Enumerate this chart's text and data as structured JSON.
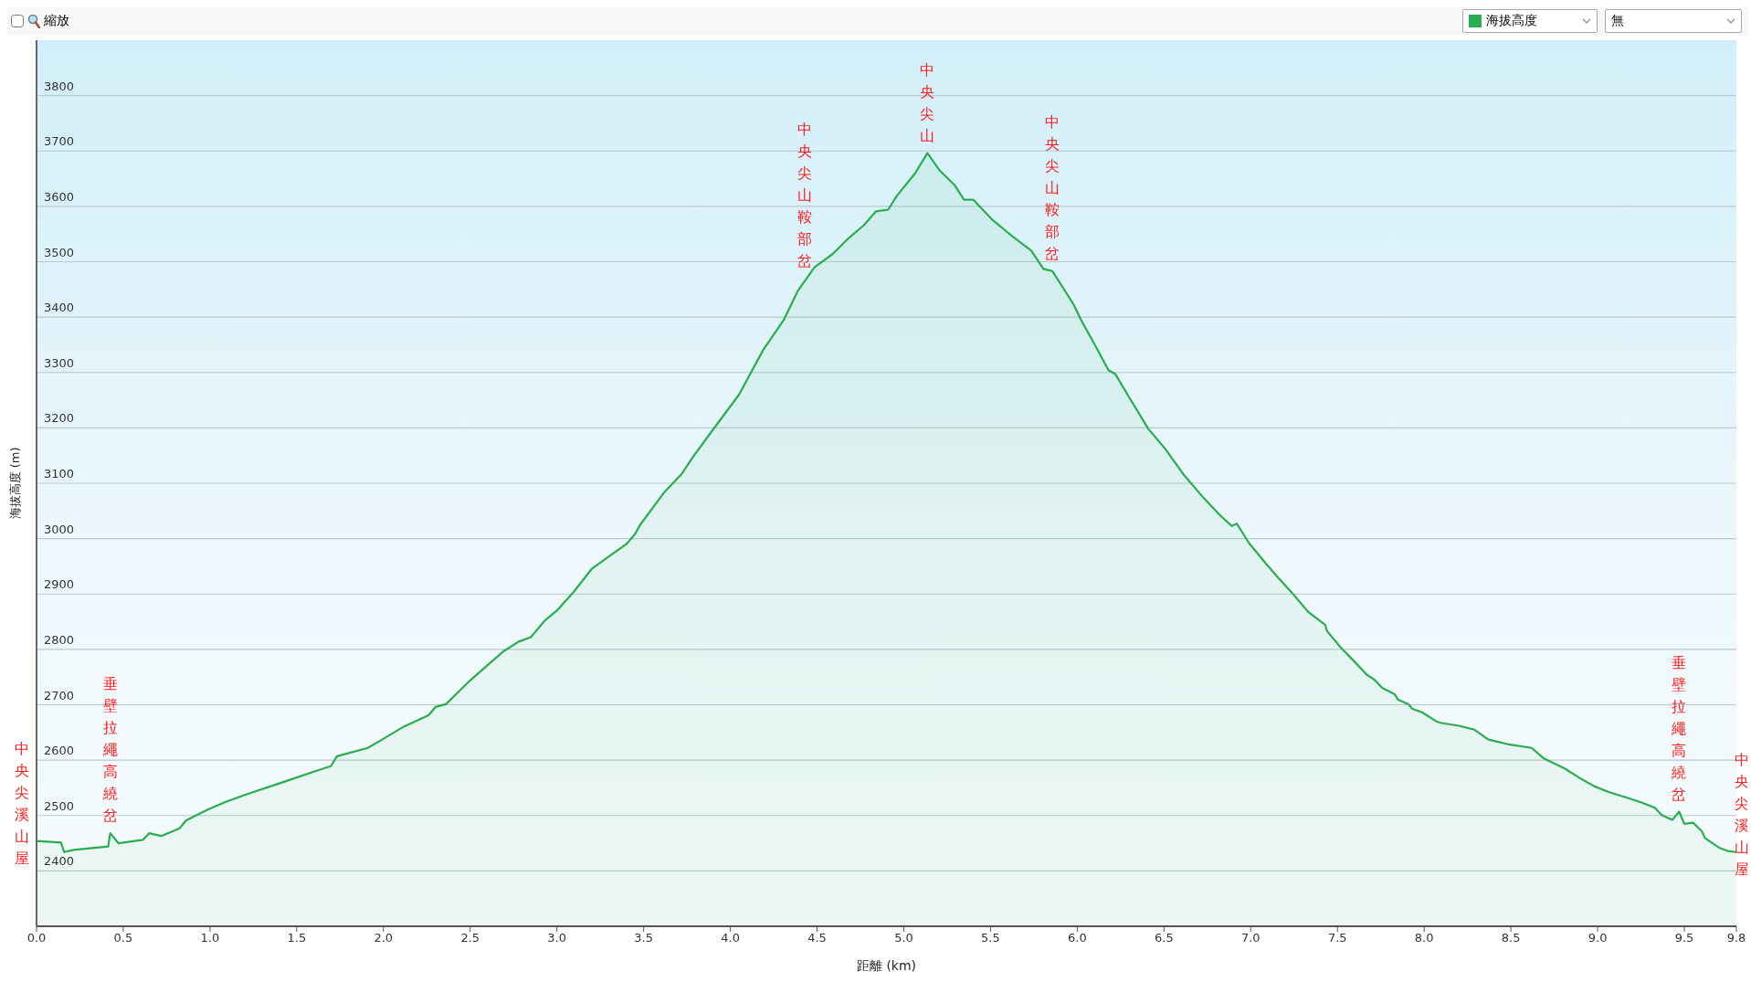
{
  "chart_data": {
    "type": "area",
    "xlabel": "距離 (km)",
    "ylabel": "海拔高度 (m)",
    "xlim": [
      0,
      9.8
    ],
    "ylim": [
      2300,
      3900
    ],
    "xticks": [
      {
        "value": 0,
        "label": "0.0"
      },
      {
        "value": 0.5,
        "label": "0.5"
      },
      {
        "value": 1,
        "label": "1.0"
      },
      {
        "value": 1.5,
        "label": "1.5"
      },
      {
        "value": 2,
        "label": "2.0"
      },
      {
        "value": 2.5,
        "label": "2.5"
      },
      {
        "value": 3,
        "label": "3.0"
      },
      {
        "value": 3.5,
        "label": "3.5"
      },
      {
        "value": 4,
        "label": "4.0"
      },
      {
        "value": 4.5,
        "label": "4.5"
      },
      {
        "value": 5,
        "label": "5.0"
      },
      {
        "value": 5.5,
        "label": "5.5"
      },
      {
        "value": 6,
        "label": "6.0"
      },
      {
        "value": 6.5,
        "label": "6.5"
      },
      {
        "value": 7,
        "label": "7.0"
      },
      {
        "value": 7.5,
        "label": "7.5"
      },
      {
        "value": 8,
        "label": "8.0"
      },
      {
        "value": 8.5,
        "label": "8.5"
      },
      {
        "value": 9,
        "label": "9.0"
      },
      {
        "value": 9.5,
        "label": "9.5"
      },
      {
        "value": 9.8,
        "label": "9.8"
      }
    ],
    "yticks": [
      2400,
      2500,
      2600,
      2700,
      2800,
      2900,
      3000,
      3100,
      3200,
      3300,
      3400,
      3500,
      3600,
      3700,
      3800
    ],
    "grid": "y",
    "legend": "top right",
    "x": [
      0,
      0.142,
      0.159,
      0.213,
      0.413,
      0.425,
      0.472,
      0.613,
      0.649,
      0.719,
      0.825,
      0.861,
      0.99,
      1.085,
      1.2,
      1.438,
      1.626,
      1.697,
      1.732,
      1.91,
      1.97,
      2.12,
      2.26,
      2.3,
      2.36,
      2.5,
      2.62,
      2.69,
      2.78,
      2.85,
      2.93,
      3.0,
      3.1,
      3.2,
      3.3,
      3.4,
      3.45,
      3.48,
      3.62,
      3.72,
      3.79,
      3.91,
      4.05,
      4.19,
      4.31,
      4.39,
      4.485,
      4.59,
      4.68,
      4.77,
      4.84,
      4.91,
      4.96,
      5.066,
      5.136,
      5.206,
      5.294,
      5.347,
      5.4,
      5.506,
      5.629,
      5.735,
      5.805,
      5.857,
      5.928,
      5.98,
      6.02,
      6.11,
      6.18,
      6.22,
      6.29,
      6.41,
      6.51,
      6.61,
      6.73,
      6.82,
      6.89,
      6.92,
      6.99,
      7.09,
      7.16,
      7.25,
      7.33,
      7.43,
      7.44,
      7.52,
      7.61,
      7.67,
      7.71,
      7.76,
      7.83,
      7.85,
      7.91,
      7.93,
      7.99,
      8.07,
      8.1,
      8.2,
      8.29,
      8.37,
      8.48,
      8.62,
      8.69,
      8.81,
      8.89,
      8.98,
      9.06,
      9.16,
      9.25,
      9.33,
      9.37,
      9.43,
      9.47,
      9.5,
      9.55,
      9.6,
      9.62,
      9.7,
      9.75,
      9.8
    ],
    "series": [
      {
        "name": "海拔高度",
        "color": "#2aad4e",
        "values": [
          2454,
          2451,
          2434,
          2438,
          2444,
          2468,
          2450,
          2456,
          2468,
          2463,
          2477,
          2491,
          2511,
          2524,
          2537,
          2562,
          2582,
          2589,
          2607,
          2622,
          2633,
          2661,
          2681,
          2696,
          2701,
          2744,
          2777,
          2796,
          2814,
          2822,
          2852,
          2870,
          2905,
          2945,
          2968,
          2990,
          3008,
          3025,
          3084,
          3117,
          3150,
          3201,
          3260,
          3341,
          3396,
          3448,
          3490,
          3514,
          3542,
          3566,
          3591,
          3594,
          3619,
          3660,
          3696,
          3665,
          3638,
          3612,
          3612,
          3577,
          3545,
          3520,
          3487,
          3483,
          3448,
          3422,
          3396,
          3345,
          3304,
          3297,
          3260,
          3198,
          3161,
          3117,
          3073,
          3043,
          3023,
          3027,
          2992,
          2954,
          2929,
          2898,
          2868,
          2844,
          2833,
          2803,
          2774,
          2754,
          2746,
          2730,
          2719,
          2709,
          2701,
          2693,
          2686,
          2670,
          2667,
          2662,
          2655,
          2637,
          2629,
          2622,
          2603,
          2585,
          2569,
          2553,
          2543,
          2533,
          2524,
          2514,
          2501,
          2492,
          2507,
          2485,
          2487,
          2472,
          2459,
          2442,
          2436,
          2434
        ]
      }
    ],
    "annotations": [
      "縮放",
      "無",
      {
        "text": "中央尖溪山屋",
        "x": 0,
        "y": 2454
      },
      {
        "text": "垂壁拉繩高繞岔",
        "x": 0.425,
        "y": 2468
      },
      {
        "text": "中央尖山鞍部岔",
        "x": 4.43,
        "y": 3470
      },
      {
        "text": "中央尖山",
        "x": 5.136,
        "y": 3696
      },
      {
        "text": "中央尖山鞍部岔",
        "x": 5.857,
        "y": 3483
      },
      {
        "text": "垂壁拉繩高繞岔",
        "x": 9.47,
        "y": 2507
      },
      {
        "text": "中央尖溪山屋",
        "x": 9.8,
        "y": 2434
      }
    ]
  }
}
